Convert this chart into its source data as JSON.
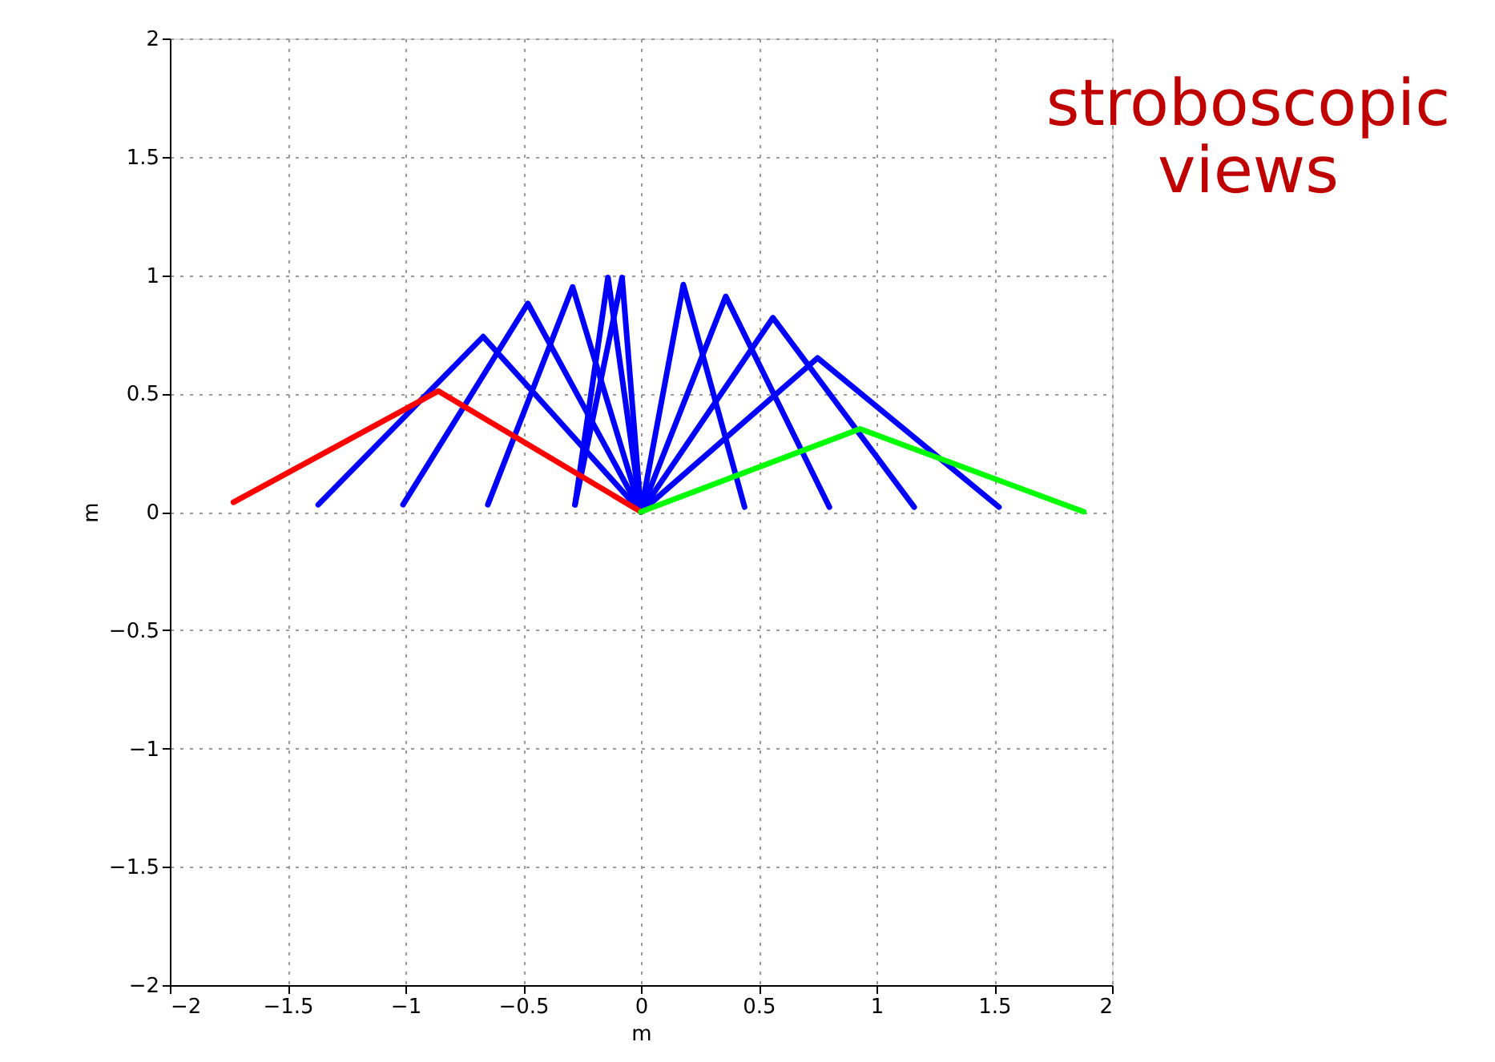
{
  "chart_data": {
    "type": "line",
    "xlabel": "m",
    "ylabel": "m",
    "xlim": [
      -2,
      2
    ],
    "ylim": [
      -2,
      2
    ],
    "xticks": [
      -2,
      -1.5,
      -1,
      -0.5,
      0,
      0.5,
      1,
      1.5,
      2
    ],
    "yticks": [
      -2,
      -1.5,
      -1,
      -0.5,
      0,
      0.5,
      1,
      1.5,
      2
    ],
    "grid": true,
    "legend": false,
    "marker": "none",
    "line_style": "solid",
    "annotations": [
      "stroboscopic views"
    ],
    "series": [
      {
        "color": "#0000ff",
        "x": [
          -1.37,
          -0.67,
          0
        ],
        "values": [
          0.03,
          0.74,
          0
        ]
      },
      {
        "color": "#0000ff",
        "x": [
          -1.01,
          -0.48,
          0
        ],
        "values": [
          0.03,
          0.88,
          0
        ]
      },
      {
        "color": "#0000ff",
        "x": [
          -0.65,
          -0.29,
          0
        ],
        "values": [
          0.03,
          0.95,
          0
        ]
      },
      {
        "color": "#0000ff",
        "x": [
          -0.28,
          -0.14,
          0
        ],
        "values": [
          0.03,
          0.99,
          0
        ]
      },
      {
        "color": "#0000ff",
        "x": [
          -0.28,
          -0.08,
          0
        ],
        "values": [
          0.03,
          0.99,
          0
        ]
      },
      {
        "color": "#0000ff",
        "x": [
          0.44,
          0.18,
          0
        ],
        "values": [
          0.02,
          0.96,
          0
        ]
      },
      {
        "color": "#0000ff",
        "x": [
          0.8,
          0.36,
          0
        ],
        "values": [
          0.02,
          0.91,
          0
        ]
      },
      {
        "color": "#0000ff",
        "x": [
          1.16,
          0.56,
          0
        ],
        "values": [
          0.02,
          0.82,
          0
        ]
      },
      {
        "color": "#0000ff",
        "x": [
          1.52,
          0.75,
          0
        ],
        "values": [
          0.02,
          0.65,
          0
        ]
      },
      {
        "color": "#ff0000",
        "x": [
          -1.73,
          -0.86,
          0
        ],
        "values": [
          0.04,
          0.51,
          0
        ]
      },
      {
        "color": "#00ff00",
        "x": [
          0,
          0.93,
          1.88
        ],
        "values": [
          0,
          0.35,
          0
        ]
      }
    ]
  }
}
